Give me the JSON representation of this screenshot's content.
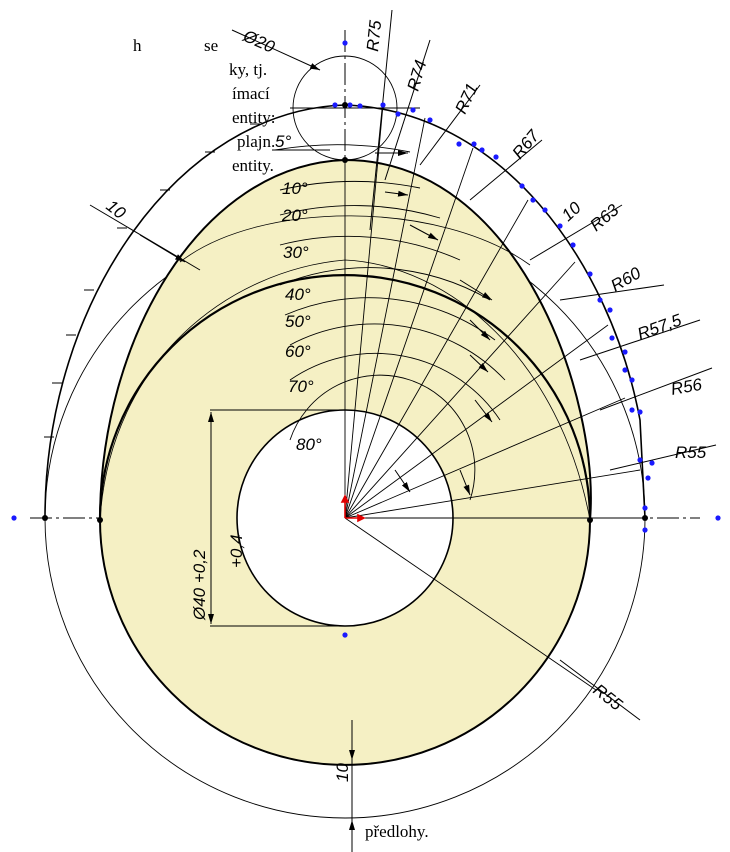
{
  "document_text": {
    "fragments": [
      "h",
      "se",
      "ky, tj.",
      "ímací",
      "entity:",
      "plajn.",
      "entity."
    ],
    "bottom_line": "předlohy."
  },
  "drawing": {
    "diameter_labels": [
      "Ø20",
      "+0,4",
      "Ø40 +0,2"
    ],
    "radius_labels": [
      "R75",
      "R74",
      "R71",
      "R67",
      "R63",
      "R60",
      "R57,5",
      "R56",
      "R55",
      "R55"
    ],
    "angle_labels": [
      "5°",
      "10°",
      "20°",
      "30°",
      "40°",
      "50°",
      "60°",
      "70°",
      "80°"
    ],
    "distance_labels": [
      "10",
      "10",
      "10"
    ]
  },
  "colors": {
    "cam_fill": "#f5f0c4",
    "line": "#000000",
    "points": "#1a1aff",
    "origin": "#e00000"
  }
}
